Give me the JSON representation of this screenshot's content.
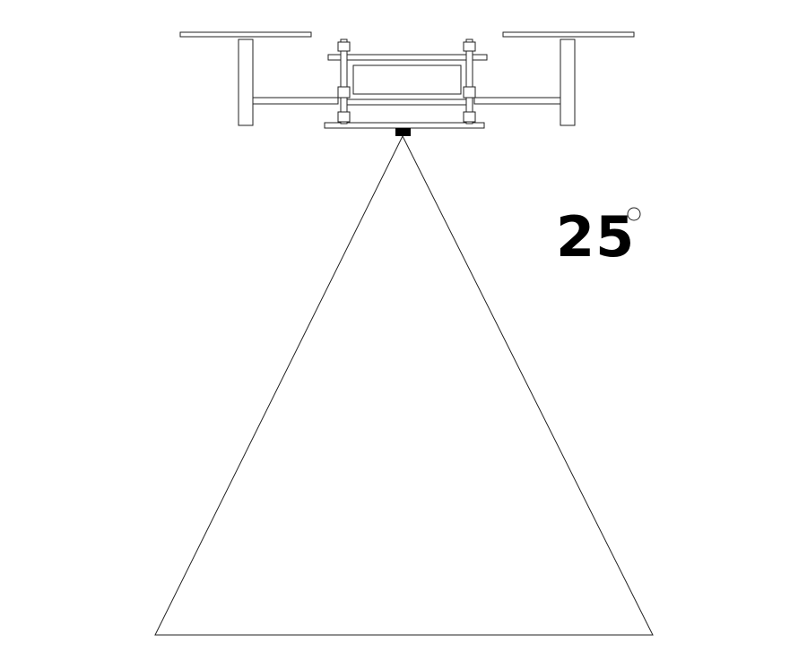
{
  "annotation": {
    "angle_value": "25",
    "unit_symbol": "degree-circle"
  },
  "colors": {
    "stroke": "#222222",
    "background": "#ffffff",
    "camera": "#000000"
  }
}
